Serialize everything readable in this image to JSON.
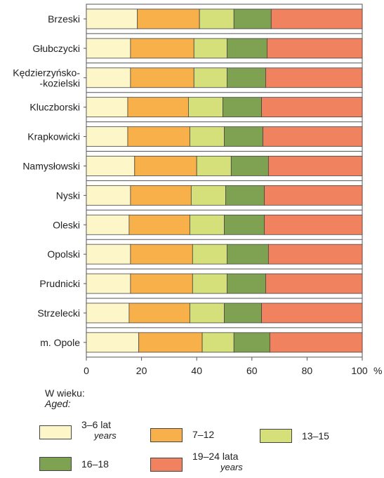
{
  "chart_data": {
    "type": "bar",
    "orientation": "horizontal",
    "stacked": true,
    "categories": [
      "Brzeski",
      "Głubczycki",
      "Kędzierzyńsko-\n-kozielski",
      "Kluczborski",
      "Krapkowicki",
      "Namysłowski",
      "Nyski",
      "Oleski",
      "Opolski",
      "Prudnicki",
      "Strzelecki",
      "m. Opole"
    ],
    "series": [
      {
        "name": "3–6 lat",
        "name_en": "years",
        "color": "#fdf6c8",
        "values": [
          18.5,
          16.0,
          16.0,
          15.0,
          15.0,
          17.5,
          16.0,
          15.5,
          16.0,
          16.0,
          15.5,
          19.0
        ]
      },
      {
        "name": "7–12",
        "name_en": "",
        "color": "#f7b04a",
        "values": [
          22.5,
          23.0,
          23.0,
          22.0,
          22.5,
          22.5,
          22.0,
          22.0,
          22.5,
          22.5,
          22.0,
          23.0
        ]
      },
      {
        "name": "13–15",
        "name_en": "",
        "color": "#d5e07a",
        "values": [
          12.5,
          12.0,
          12.0,
          12.5,
          12.5,
          12.5,
          12.5,
          12.5,
          12.5,
          12.5,
          12.5,
          11.5
        ]
      },
      {
        "name": "16–18",
        "name_en": "",
        "color": "#7fa152",
        "values": [
          13.5,
          14.5,
          14.0,
          14.0,
          14.0,
          13.5,
          14.0,
          14.5,
          15.0,
          14.0,
          13.5,
          13.0
        ]
      },
      {
        "name": "19–24 lata",
        "name_en": "years",
        "color": "#f0825f",
        "values": [
          33.0,
          34.5,
          35.0,
          36.5,
          36.0,
          34.0,
          35.5,
          35.5,
          34.0,
          35.0,
          36.5,
          33.5
        ]
      }
    ],
    "xlim": [
      0,
      100
    ],
    "x_ticks": [
      "0",
      "20",
      "40",
      "60",
      "80",
      "100"
    ],
    "x_unit": "%",
    "grid": false,
    "legend_position": "bottom",
    "legend_title": "W wieku:",
    "legend_title_en": "Aged:"
  }
}
